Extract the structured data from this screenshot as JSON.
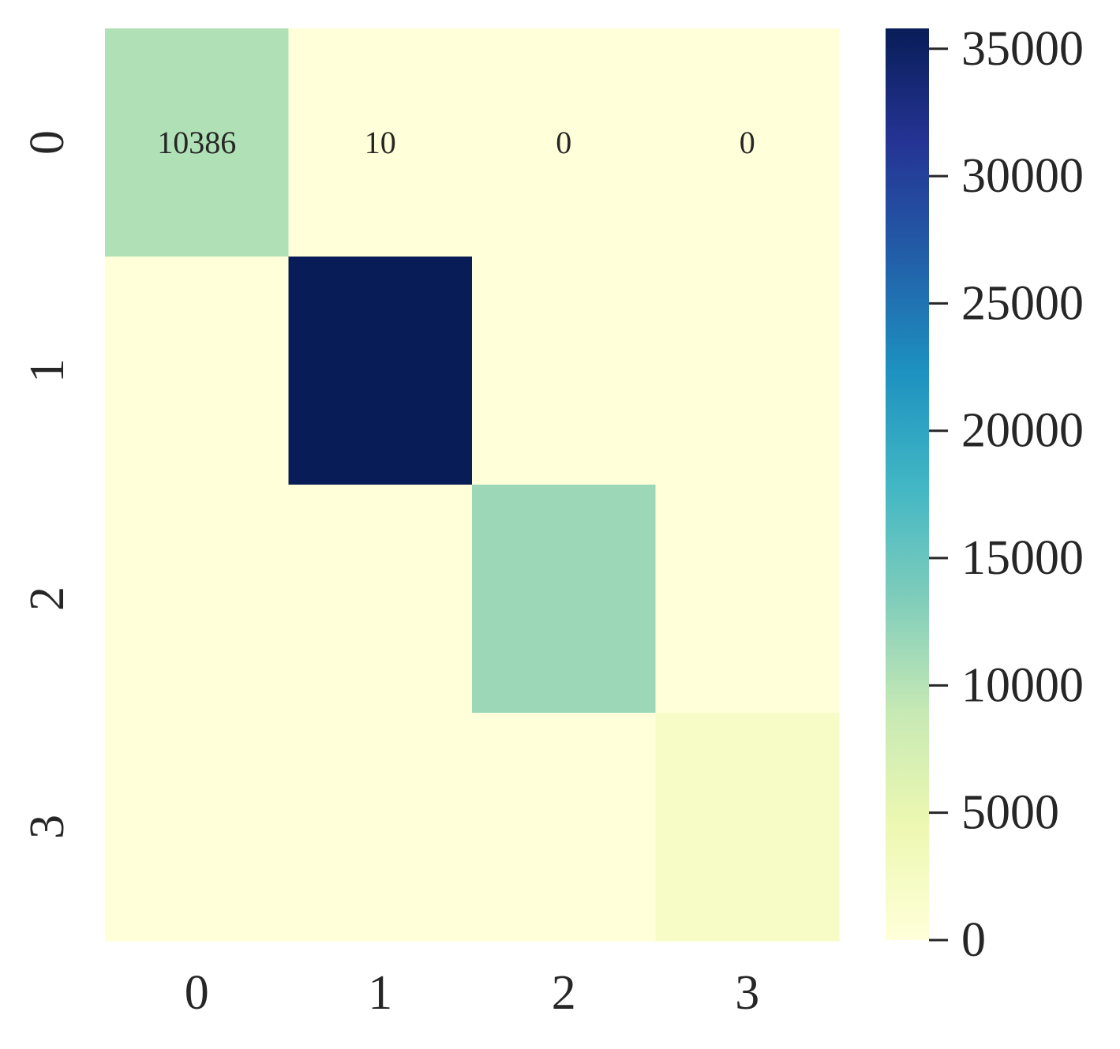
{
  "chart_data": {
    "type": "heatmap",
    "x_categories": [
      "0",
      "1",
      "2",
      "3"
    ],
    "y_categories": [
      "0",
      "1",
      "2",
      "3"
    ],
    "matrix": [
      [
        10386,
        10,
        0,
        0
      ],
      [
        0,
        35800,
        0,
        0
      ],
      [
        0,
        0,
        11600,
        0
      ],
      [
        0,
        0,
        0,
        2000
      ]
    ],
    "cell_labels": [
      [
        "10386",
        "10",
        "0",
        "0"
      ],
      [
        "",
        "",
        "",
        ""
      ],
      [
        "",
        "",
        "",
        ""
      ],
      [
        "",
        "",
        "",
        ""
      ]
    ],
    "colormap": "YlGnBu",
    "colormap_stops": [
      "#ffffd9",
      "#edf8b1",
      "#c7e9b4",
      "#7fcdbb",
      "#41b6c4",
      "#1d91c0",
      "#225ea8",
      "#253494",
      "#081d58"
    ],
    "colorbar": {
      "range": [
        0,
        35800
      ],
      "ticks": [
        0,
        5000,
        10000,
        15000,
        20000,
        25000,
        30000,
        35000
      ],
      "tick_labels": [
        "0",
        "5000",
        "10000",
        "15000",
        "20000",
        "25000",
        "30000",
        "35000"
      ],
      "position": "right"
    },
    "title": "",
    "xlabel": "",
    "ylabel": ""
  }
}
